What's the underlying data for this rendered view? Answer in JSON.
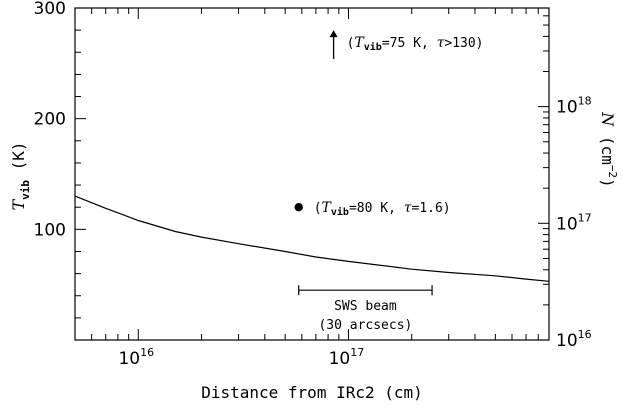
{
  "chart_data": {
    "type": "line",
    "title": "",
    "xlabel": "Distance from IRc2 (cm)",
    "ylabel_left": {
      "symbol": "T",
      "sub": "vib",
      "unit": " (K)"
    },
    "ylabel_right": {
      "symbol": "N",
      "unit_open": " (cm",
      "sup": "−2",
      "unit_close": ")"
    },
    "xlim": [
      5000000000000000.0,
      9e+17
    ],
    "xscale": "log",
    "ylim_left": [
      0,
      300
    ],
    "ylim_right": [
      1e+16,
      7e+18
    ],
    "yscale_right": "log",
    "grid": false,
    "x_ticks": [
      {
        "value": 1e+16,
        "base": "10",
        "exp": "16"
      },
      {
        "value": 1e+17,
        "base": "10",
        "exp": "17"
      }
    ],
    "y_left_ticks": [
      {
        "value": 100,
        "label": "100"
      },
      {
        "value": 200,
        "label": "200"
      },
      {
        "value": 300,
        "label": "300"
      }
    ],
    "y_right_ticks": [
      {
        "value": 1e+16,
        "base": "10",
        "exp": "16"
      },
      {
        "value": 1e+17,
        "base": "10",
        "exp": "17"
      },
      {
        "value": 1e+18,
        "base": "10",
        "exp": "18"
      }
    ],
    "series": [
      {
        "x": [
          5000000000000000.0,
          7000000000000000.0,
          1e+16,
          1.5e+16,
          2e+16,
          3e+16,
          5e+16,
          7e+16,
          1e+17,
          1.5e+17,
          2e+17,
          3e+17,
          5e+17,
          7e+17,
          9e+17
        ],
        "y": [
          130,
          119,
          108,
          98,
          93,
          87,
          80,
          75,
          71,
          67,
          64,
          61,
          58,
          55,
          53
        ]
      }
    ],
    "points": [
      {
        "x": 5.8e+16,
        "y": 120,
        "label_open": "(",
        "label_sym": "T",
        "label_sub": "vib",
        "label_mid": "=80 K, ",
        "label_tau": "τ",
        "label_end": "=1.6)"
      }
    ],
    "arrows": [
      {
        "x": 8.5e+16,
        "y_from": 254,
        "y_to": 280,
        "label_open": "(",
        "label_sym": "T",
        "label_sub": "vib",
        "label_mid": "=75 K, ",
        "label_tau": "τ",
        "label_end": ">130)"
      }
    ],
    "beam": {
      "x_from": 5.8e+16,
      "x_to": 2.5e+17,
      "y": 45,
      "line1": "SWS beam",
      "line2": "(30 arcsecs)"
    }
  }
}
